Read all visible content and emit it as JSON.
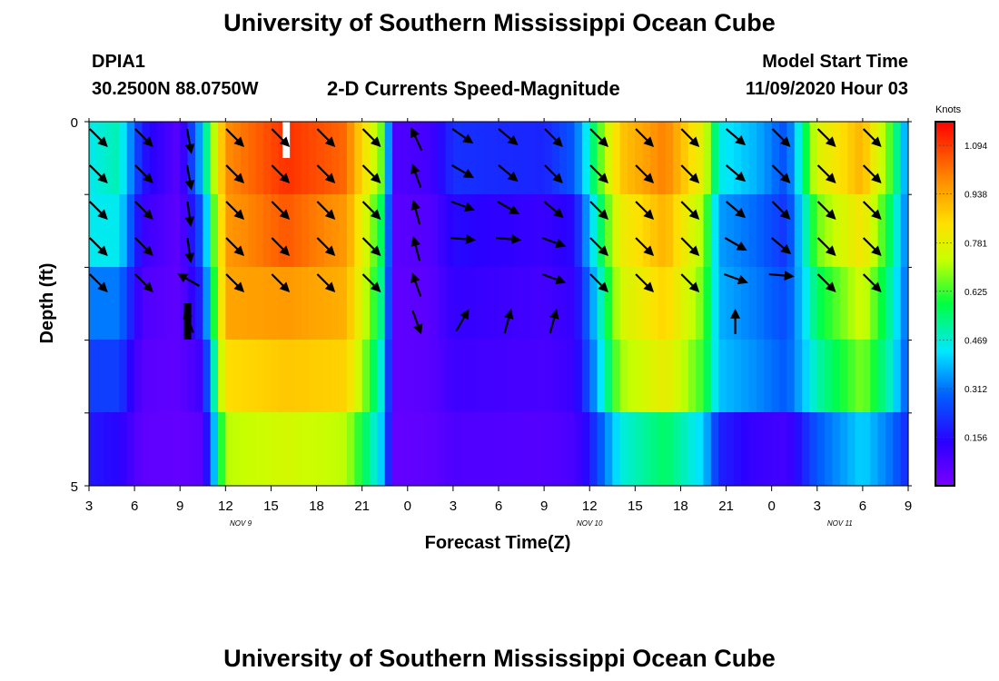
{
  "header": {
    "title_top": "University of Southern Mississippi Ocean Cube",
    "title_bottom": "University of Southern Mississippi Ocean Cube",
    "station_id": "DPIA1",
    "station_coords": "30.2500N 88.0750W",
    "chart_title": "2-D Currents Speed-Magnitude",
    "model_label": "Model Start Time",
    "model_start": "11/09/2020 Hour 03"
  },
  "chart_data": {
    "type": "heatmap",
    "title": "2-D Currents Speed-Magnitude",
    "xlabel": "Forecast Time(Z)",
    "ylabel": "Depth (ft)",
    "colorbar_label": "Knots",
    "colorbar_ticks": [
      "1.094",
      "0.938",
      "0.781",
      "0.625",
      "0.469",
      "0.312",
      "0.156"
    ],
    "colorbar_range": [
      0.0,
      1.17
    ],
    "x_range_hours": [
      0,
      54
    ],
    "x_tick_hours": [
      0,
      3,
      6,
      9,
      12,
      15,
      18,
      21,
      24,
      27,
      30,
      33,
      36,
      39,
      42,
      45,
      48,
      51,
      54
    ],
    "x_tick_labels": [
      "3",
      "6",
      "9",
      "12",
      "15",
      "18",
      "21",
      "0",
      "3",
      "6",
      "9",
      "12",
      "15",
      "18",
      "21",
      "0",
      "3",
      "6",
      "9"
    ],
    "y_tick_labels": [
      "0",
      "5"
    ],
    "y_range_ft": [
      0,
      5
    ],
    "date_labels": [
      {
        "text": "NOV  9",
        "hour": 10
      },
      {
        "text": "NOV  10",
        "hour": 33
      },
      {
        "text": "NOV  11",
        "hour": 49.5
      }
    ],
    "depth_layers": 5,
    "speed_keyframes": [
      {
        "hour": 0.0,
        "speeds": [
          0.45,
          0.45,
          0.32,
          0.24,
          0.18
        ]
      },
      {
        "hour": 2.0,
        "speeds": [
          0.5,
          0.45,
          0.32,
          0.24,
          0.15
        ]
      },
      {
        "hour": 3.5,
        "speeds": [
          0.18,
          0.12,
          0.08,
          0.06,
          0.05
        ]
      },
      {
        "hour": 6.0,
        "speeds": [
          0.06,
          0.05,
          0.05,
          0.05,
          0.04
        ]
      },
      {
        "hour": 7.5,
        "speeds": [
          0.42,
          0.3,
          0.22,
          0.12,
          0.06
        ]
      },
      {
        "hour": 9.0,
        "speeds": [
          1.02,
          1.0,
          0.98,
          0.88,
          0.72
        ]
      },
      {
        "hour": 13.0,
        "speeds": [
          1.12,
          1.08,
          1.0,
          0.92,
          0.76
        ]
      },
      {
        "hour": 17.0,
        "speeds": [
          1.06,
          1.0,
          0.96,
          0.9,
          0.72
        ]
      },
      {
        "hour": 19.5,
        "speeds": [
          0.62,
          0.52,
          0.48,
          0.42,
          0.38
        ]
      },
      {
        "hour": 20.0,
        "speeds": [
          0.08,
          0.06,
          0.05,
          0.05,
          0.04
        ]
      },
      {
        "hour": 22.5,
        "speeds": [
          0.1,
          0.07,
          0.06,
          0.06,
          0.05
        ]
      },
      {
        "hour": 24.0,
        "speeds": [
          0.22,
          0.16,
          0.13,
          0.11,
          0.08
        ]
      },
      {
        "hour": 30.0,
        "speeds": [
          0.2,
          0.12,
          0.1,
          0.09,
          0.07
        ]
      },
      {
        "hour": 32.0,
        "speeds": [
          0.28,
          0.16,
          0.13,
          0.12,
          0.09
        ]
      },
      {
        "hour": 33.0,
        "speeds": [
          0.5,
          0.4,
          0.32,
          0.28,
          0.18
        ]
      },
      {
        "hour": 35.0,
        "speeds": [
          0.92,
          0.82,
          0.76,
          0.7,
          0.46
        ]
      },
      {
        "hour": 38.0,
        "speeds": [
          1.04,
          0.96,
          0.9,
          0.82,
          0.56
        ]
      },
      {
        "hour": 40.5,
        "speeds": [
          0.8,
          0.7,
          0.66,
          0.62,
          0.42
        ]
      },
      {
        "hour": 41.5,
        "speeds": [
          0.46,
          0.36,
          0.38,
          0.4,
          0.2
        ]
      },
      {
        "hour": 44.0,
        "speeds": [
          0.38,
          0.3,
          0.32,
          0.34,
          0.12
        ]
      },
      {
        "hour": 46.0,
        "speeds": [
          0.26,
          0.22,
          0.26,
          0.28,
          0.1
        ]
      },
      {
        "hour": 48.0,
        "speeds": [
          0.78,
          0.66,
          0.56,
          0.5,
          0.28
        ]
      },
      {
        "hour": 51.0,
        "speeds": [
          0.96,
          0.86,
          0.76,
          0.68,
          0.42
        ]
      },
      {
        "hour": 53.0,
        "speeds": [
          0.6,
          0.52,
          0.48,
          0.46,
          0.3
        ]
      },
      {
        "hour": 54.0,
        "speeds": [
          0.32,
          0.3,
          0.28,
          0.26,
          0.2
        ]
      }
    ],
    "vectors": [
      {
        "hour": 0,
        "depth_layer": 0,
        "angle_deg": 135
      },
      {
        "hour": 0,
        "depth_layer": 1,
        "angle_deg": 135
      },
      {
        "hour": 0,
        "depth_layer": 2,
        "angle_deg": 135
      },
      {
        "hour": 0,
        "depth_layer": 3,
        "angle_deg": 135
      },
      {
        "hour": 0,
        "depth_layer": 4,
        "angle_deg": 135
      },
      {
        "hour": 3,
        "depth_layer": 0,
        "angle_deg": 135
      },
      {
        "hour": 3,
        "depth_layer": 1,
        "angle_deg": 135
      },
      {
        "hour": 3,
        "depth_layer": 2,
        "angle_deg": 135
      },
      {
        "hour": 3,
        "depth_layer": 3,
        "angle_deg": 135
      },
      {
        "hour": 3,
        "depth_layer": 4,
        "angle_deg": 135
      },
      {
        "hour": 6,
        "depth_layer": 0,
        "angle_deg": 170
      },
      {
        "hour": 6,
        "depth_layer": 1,
        "angle_deg": 170
      },
      {
        "hour": 6,
        "depth_layer": 2,
        "angle_deg": 172
      },
      {
        "hour": 6,
        "depth_layer": 3,
        "angle_deg": 172
      },
      {
        "hour": 6,
        "depth_layer": 4,
        "angle_deg": 300
      },
      {
        "hour": 6,
        "depth_layer": 5,
        "angle_deg": 340
      },
      {
        "hour": 9,
        "depth_layer": 0,
        "angle_deg": 135
      },
      {
        "hour": 9,
        "depth_layer": 1,
        "angle_deg": 135
      },
      {
        "hour": 9,
        "depth_layer": 2,
        "angle_deg": 135
      },
      {
        "hour": 9,
        "depth_layer": 3,
        "angle_deg": 135
      },
      {
        "hour": 9,
        "depth_layer": 4,
        "angle_deg": 135
      },
      {
        "hour": 12,
        "depth_layer": 0,
        "angle_deg": 135
      },
      {
        "hour": 12,
        "depth_layer": 1,
        "angle_deg": 135
      },
      {
        "hour": 12,
        "depth_layer": 2,
        "angle_deg": 135
      },
      {
        "hour": 12,
        "depth_layer": 3,
        "angle_deg": 135
      },
      {
        "hour": 12,
        "depth_layer": 4,
        "angle_deg": 135
      },
      {
        "hour": 15,
        "depth_layer": 0,
        "angle_deg": 135
      },
      {
        "hour": 15,
        "depth_layer": 1,
        "angle_deg": 135
      },
      {
        "hour": 15,
        "depth_layer": 2,
        "angle_deg": 135
      },
      {
        "hour": 15,
        "depth_layer": 3,
        "angle_deg": 135
      },
      {
        "hour": 15,
        "depth_layer": 4,
        "angle_deg": 135
      },
      {
        "hour": 18,
        "depth_layer": 0,
        "angle_deg": 135
      },
      {
        "hour": 18,
        "depth_layer": 1,
        "angle_deg": 135
      },
      {
        "hour": 18,
        "depth_layer": 2,
        "angle_deg": 135
      },
      {
        "hour": 18,
        "depth_layer": 3,
        "angle_deg": 135
      },
      {
        "hour": 18,
        "depth_layer": 4,
        "angle_deg": 135
      },
      {
        "hour": 21,
        "depth_layer": 0,
        "angle_deg": 335
      },
      {
        "hour": 21,
        "depth_layer": 1,
        "angle_deg": 340
      },
      {
        "hour": 21,
        "depth_layer": 2,
        "angle_deg": 345
      },
      {
        "hour": 21,
        "depth_layer": 3,
        "angle_deg": 345
      },
      {
        "hour": 21,
        "depth_layer": 4,
        "angle_deg": 340
      },
      {
        "hour": 21,
        "depth_layer": 5,
        "angle_deg": 160
      },
      {
        "hour": 24,
        "depth_layer": 0,
        "angle_deg": 125
      },
      {
        "hour": 24,
        "depth_layer": 1,
        "angle_deg": 120
      },
      {
        "hour": 24,
        "depth_layer": 2,
        "angle_deg": 110
      },
      {
        "hour": 24,
        "depth_layer": 3,
        "angle_deg": 95
      },
      {
        "hour": 24,
        "depth_layer": 5,
        "angle_deg": 30
      },
      {
        "hour": 27,
        "depth_layer": 0,
        "angle_deg": 130
      },
      {
        "hour": 27,
        "depth_layer": 1,
        "angle_deg": 130
      },
      {
        "hour": 27,
        "depth_layer": 2,
        "angle_deg": 120
      },
      {
        "hour": 27,
        "depth_layer": 3,
        "angle_deg": 95
      },
      {
        "hour": 27,
        "depth_layer": 5,
        "angle_deg": 15
      },
      {
        "hour": 30,
        "depth_layer": 0,
        "angle_deg": 135
      },
      {
        "hour": 30,
        "depth_layer": 1,
        "angle_deg": 135
      },
      {
        "hour": 30,
        "depth_layer": 2,
        "angle_deg": 130
      },
      {
        "hour": 30,
        "depth_layer": 3,
        "angle_deg": 110
      },
      {
        "hour": 30,
        "depth_layer": 4,
        "angle_deg": 110
      },
      {
        "hour": 30,
        "depth_layer": 5,
        "angle_deg": 15
      },
      {
        "hour": 33,
        "depth_layer": 0,
        "angle_deg": 135
      },
      {
        "hour": 33,
        "depth_layer": 1,
        "angle_deg": 135
      },
      {
        "hour": 33,
        "depth_layer": 2,
        "angle_deg": 135
      },
      {
        "hour": 33,
        "depth_layer": 3,
        "angle_deg": 135
      },
      {
        "hour": 33,
        "depth_layer": 4,
        "angle_deg": 135
      },
      {
        "hour": 36,
        "depth_layer": 0,
        "angle_deg": 135
      },
      {
        "hour": 36,
        "depth_layer": 1,
        "angle_deg": 135
      },
      {
        "hour": 36,
        "depth_layer": 2,
        "angle_deg": 135
      },
      {
        "hour": 36,
        "depth_layer": 3,
        "angle_deg": 135
      },
      {
        "hour": 36,
        "depth_layer": 4,
        "angle_deg": 135
      },
      {
        "hour": 39,
        "depth_layer": 0,
        "angle_deg": 135
      },
      {
        "hour": 39,
        "depth_layer": 1,
        "angle_deg": 135
      },
      {
        "hour": 39,
        "depth_layer": 2,
        "angle_deg": 135
      },
      {
        "hour": 39,
        "depth_layer": 3,
        "angle_deg": 135
      },
      {
        "hour": 39,
        "depth_layer": 4,
        "angle_deg": 135
      },
      {
        "hour": 42,
        "depth_layer": 0,
        "angle_deg": 130
      },
      {
        "hour": 42,
        "depth_layer": 1,
        "angle_deg": 130
      },
      {
        "hour": 42,
        "depth_layer": 2,
        "angle_deg": 130
      },
      {
        "hour": 42,
        "depth_layer": 3,
        "angle_deg": 120
      },
      {
        "hour": 42,
        "depth_layer": 4,
        "angle_deg": 110
      },
      {
        "hour": 42,
        "depth_layer": 5,
        "angle_deg": 0
      },
      {
        "hour": 45,
        "depth_layer": 0,
        "angle_deg": 135
      },
      {
        "hour": 45,
        "depth_layer": 1,
        "angle_deg": 135
      },
      {
        "hour": 45,
        "depth_layer": 2,
        "angle_deg": 135
      },
      {
        "hour": 45,
        "depth_layer": 3,
        "angle_deg": 130
      },
      {
        "hour": 45,
        "depth_layer": 4,
        "angle_deg": 95
      },
      {
        "hour": 48,
        "depth_layer": 0,
        "angle_deg": 135
      },
      {
        "hour": 48,
        "depth_layer": 1,
        "angle_deg": 135
      },
      {
        "hour": 48,
        "depth_layer": 2,
        "angle_deg": 135
      },
      {
        "hour": 48,
        "depth_layer": 3,
        "angle_deg": 135
      },
      {
        "hour": 48,
        "depth_layer": 4,
        "angle_deg": 135
      },
      {
        "hour": 51,
        "depth_layer": 0,
        "angle_deg": 135
      },
      {
        "hour": 51,
        "depth_layer": 1,
        "angle_deg": 135
      },
      {
        "hour": 51,
        "depth_layer": 2,
        "angle_deg": 135
      },
      {
        "hour": 51,
        "depth_layer": 3,
        "angle_deg": 135
      },
      {
        "hour": 51,
        "depth_layer": 4,
        "angle_deg": 135
      }
    ],
    "markers": [
      {
        "hour": 13,
        "depth_layer": 0,
        "color": "#ffffff"
      },
      {
        "hour": 6.5,
        "depth_layer": 5,
        "color": "#000000"
      }
    ],
    "colors": [
      "#7a00ff",
      "#2a00ff",
      "#0060ff",
      "#00e8ff",
      "#00ff40",
      "#c8ff00",
      "#ffe000",
      "#ff8c00",
      "#ff0000"
    ]
  }
}
